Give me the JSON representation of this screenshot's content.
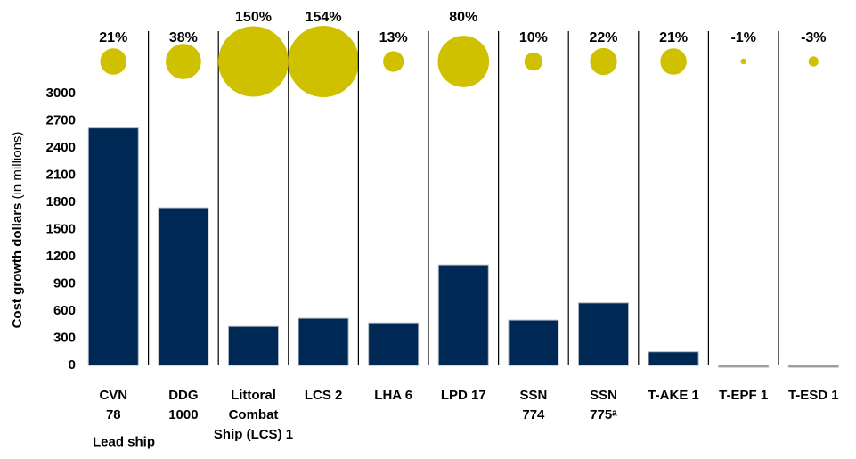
{
  "chart_data": {
    "type": "bar_bubble",
    "y_label": "Cost growth dollars",
    "y_label_unit": "(in millions)",
    "x_label": "Lead ship",
    "categories": [
      "CVN\n78",
      "DDG\n1000",
      "Littoral\nCombat\nShip (LCS) 1",
      "LCS 2",
      "LHA 6",
      "LPD 17",
      "SSN\n774",
      "SSN\n775ᵃ",
      "T-AKE 1",
      "T-EPF 1",
      "T-ESD 1"
    ],
    "values": [
      2620,
      1740,
      430,
      520,
      470,
      1110,
      500,
      690,
      150,
      -10,
      -20
    ],
    "bar_colors": [
      "#002855",
      "#002855",
      "#002855",
      "#002855",
      "#002855",
      "#002855",
      "#002855",
      "#002855",
      "#002855",
      "#8c8c8c",
      "#8c8c8c"
    ],
    "growth_percent": [
      21,
      38,
      150,
      154,
      13,
      80,
      10,
      22,
      21,
      -1,
      -3
    ],
    "growth_labels": [
      "21%",
      "38%",
      "150%",
      "154%",
      "13%",
      "80%",
      "10%",
      "22%",
      "21%",
      "-1%",
      "-3%"
    ],
    "bubble_color": "#cfc000",
    "ylim": [
      0,
      3000
    ],
    "yticks": [
      0,
      300,
      600,
      900,
      1200,
      1500,
      1800,
      2100,
      2400,
      2700,
      3000
    ]
  }
}
